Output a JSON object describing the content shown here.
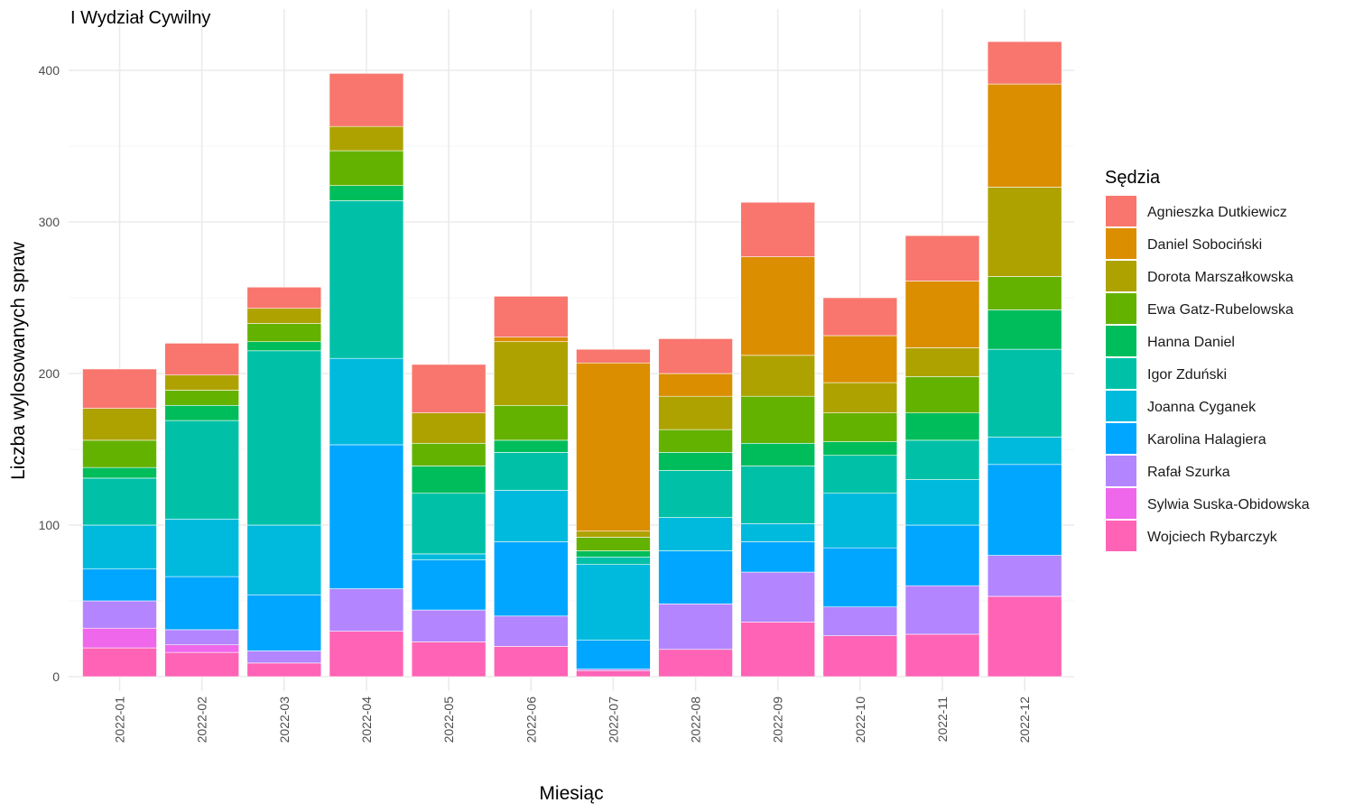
{
  "chart_data": {
    "type": "bar",
    "stacked": true,
    "title": "I Wydział Cywilny",
    "xlabel": "Miesiąc",
    "ylabel": "Liczba wylosowanych spraw",
    "ylim": [
      0,
      420
    ],
    "yticks": [
      0,
      100,
      200,
      300,
      400
    ],
    "grid": true,
    "legend_position": "right",
    "legend_title": "Sędzia",
    "categories": [
      "2022-01",
      "2022-02",
      "2022-03",
      "2022-04",
      "2022-05",
      "2022-06",
      "2022-07",
      "2022-08",
      "2022-09",
      "2022-10",
      "2022-11",
      "2022-12"
    ],
    "series": [
      {
        "name": "Agnieszka Dutkiewicz",
        "color": "#F8766D",
        "values": [
          26,
          21,
          14,
          35,
          32,
          27,
          9,
          23,
          36,
          25,
          30,
          28
        ]
      },
      {
        "name": "Daniel Sobociński",
        "color": "#DB8E00",
        "values": [
          0,
          0,
          0,
          0,
          0,
          3,
          111,
          15,
          65,
          31,
          44,
          68
        ]
      },
      {
        "name": "Dorota Marszałkowska",
        "color": "#AEA200",
        "values": [
          21,
          10,
          10,
          16,
          20,
          42,
          4,
          22,
          27,
          20,
          19,
          59
        ]
      },
      {
        "name": "Ewa Gatz-Rubelowska",
        "color": "#64B200",
        "values": [
          18,
          10,
          12,
          23,
          15,
          23,
          9,
          15,
          31,
          19,
          24,
          22
        ]
      },
      {
        "name": "Hanna Daniel",
        "color": "#00BD5C",
        "values": [
          7,
          10,
          6,
          10,
          18,
          8,
          4,
          12,
          15,
          9,
          18,
          26
        ]
      },
      {
        "name": "Igor Zduński",
        "color": "#00C1A7",
        "values": [
          31,
          65,
          115,
          104,
          40,
          25,
          5,
          31,
          38,
          25,
          26,
          58
        ]
      },
      {
        "name": "Joanna Cyganek",
        "color": "#00BADE",
        "values": [
          29,
          38,
          46,
          57,
          4,
          34,
          50,
          22,
          12,
          36,
          30,
          18
        ]
      },
      {
        "name": "Karolina Halagiera",
        "color": "#00A6FF",
        "values": [
          21,
          35,
          37,
          95,
          33,
          49,
          19,
          35,
          20,
          39,
          40,
          60
        ]
      },
      {
        "name": "Rafał Szurka",
        "color": "#B385FF",
        "values": [
          18,
          10,
          8,
          28,
          21,
          20,
          1,
          30,
          33,
          19,
          32,
          27
        ]
      },
      {
        "name": "Sylwia Suska-Obidowska",
        "color": "#EF67EB",
        "values": [
          13,
          5,
          0,
          0,
          0,
          0,
          0,
          0,
          0,
          0,
          0,
          0
        ]
      },
      {
        "name": "Wojciech Rybarczyk",
        "color": "#FF63B6",
        "values": [
          19,
          16,
          9,
          30,
          23,
          20,
          4,
          18,
          36,
          27,
          28,
          53
        ]
      }
    ]
  }
}
